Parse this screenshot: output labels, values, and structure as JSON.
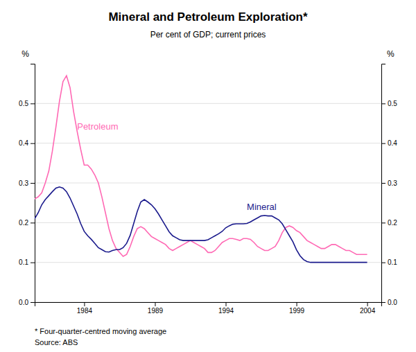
{
  "chart_data": {
    "type": "line",
    "title": "Mineral and Petroleum Exploration*",
    "subtitle": "Per cent of GDP; current prices",
    "ylabel": "%",
    "y2label": "%",
    "footnote": "*  Four-quarter-centred moving average",
    "source": "Source: ABS",
    "grid": true,
    "xlim": [
      1980.5,
      2005.0
    ],
    "xticks": [
      1984,
      1989,
      1994,
      1999,
      2004
    ],
    "ylim": [
      0.0,
      0.6
    ],
    "yticks": [
      {
        "value": 0.0,
        "label": "0.0"
      },
      0.1,
      0.2,
      0.3,
      0.4,
      0.5
    ],
    "y2lim": [
      0.0,
      0.6
    ],
    "y2ticks": [
      {
        "value": 0.0,
        "label": "0.0"
      },
      0.1,
      0.2,
      0.3,
      0.4,
      0.5
    ],
    "x": [
      1980.5,
      1980.75,
      1981.0,
      1981.25,
      1981.5,
      1981.75,
      1982.0,
      1982.25,
      1982.5,
      1982.75,
      1983.0,
      1983.25,
      1983.5,
      1983.75,
      1984.0,
      1984.25,
      1984.5,
      1984.75,
      1985.0,
      1985.25,
      1985.5,
      1985.75,
      1986.0,
      1986.25,
      1986.5,
      1986.75,
      1987.0,
      1987.25,
      1987.5,
      1987.75,
      1988.0,
      1988.25,
      1988.5,
      1988.75,
      1989.0,
      1989.25,
      1989.5,
      1989.75,
      1990.0,
      1990.25,
      1990.5,
      1990.75,
      1991.0,
      1991.25,
      1991.5,
      1991.75,
      1992.0,
      1992.25,
      1992.5,
      1992.75,
      1993.0,
      1993.25,
      1993.5,
      1993.75,
      1994.0,
      1994.25,
      1994.5,
      1994.75,
      1995.0,
      1995.25,
      1995.5,
      1995.75,
      1996.0,
      1996.25,
      1996.5,
      1996.75,
      1997.0,
      1997.25,
      1997.5,
      1997.75,
      1998.0,
      1998.25,
      1998.5,
      1998.75,
      1999.0,
      1999.25,
      1999.5,
      1999.75,
      2000.0,
      2000.25,
      2000.5,
      2000.75,
      2001.0,
      2001.25,
      2001.5,
      2001.75,
      2002.0,
      2002.25,
      2002.5,
      2002.75,
      2003.0,
      2003.25,
      2003.5,
      2003.75,
      2004.0
    ],
    "series": [
      {
        "name": "Petroleum",
        "color": "#FF69B4",
        "label_x": 1983.5,
        "label_y": 0.435,
        "values": [
          0.26,
          0.265,
          0.275,
          0.3,
          0.33,
          0.38,
          0.44,
          0.505,
          0.555,
          0.57,
          0.54,
          0.48,
          0.43,
          0.385,
          0.345,
          0.345,
          0.335,
          0.32,
          0.3,
          0.265,
          0.225,
          0.185,
          0.155,
          0.135,
          0.125,
          0.115,
          0.12,
          0.14,
          0.165,
          0.185,
          0.19,
          0.185,
          0.175,
          0.165,
          0.16,
          0.155,
          0.15,
          0.145,
          0.135,
          0.13,
          0.135,
          0.14,
          0.145,
          0.15,
          0.155,
          0.15,
          0.145,
          0.14,
          0.135,
          0.125,
          0.125,
          0.13,
          0.14,
          0.15,
          0.155,
          0.16,
          0.16,
          0.158,
          0.155,
          0.16,
          0.16,
          0.158,
          0.15,
          0.14,
          0.135,
          0.13,
          0.13,
          0.135,
          0.14,
          0.155,
          0.175,
          0.188,
          0.192,
          0.188,
          0.18,
          0.175,
          0.165,
          0.155,
          0.15,
          0.145,
          0.14,
          0.135,
          0.135,
          0.14,
          0.145,
          0.145,
          0.14,
          0.135,
          0.13,
          0.13,
          0.125,
          0.12,
          0.12,
          0.12,
          0.12
        ]
      },
      {
        "name": "Mineral",
        "color": "#1a1a8c",
        "label_x": 1995.5,
        "label_y": 0.232,
        "values": [
          0.21,
          0.225,
          0.245,
          0.258,
          0.268,
          0.278,
          0.287,
          0.29,
          0.287,
          0.278,
          0.262,
          0.242,
          0.222,
          0.198,
          0.178,
          0.167,
          0.158,
          0.148,
          0.137,
          0.132,
          0.127,
          0.126,
          0.13,
          0.132,
          0.132,
          0.137,
          0.148,
          0.168,
          0.198,
          0.228,
          0.252,
          0.258,
          0.252,
          0.245,
          0.235,
          0.222,
          0.207,
          0.192,
          0.177,
          0.167,
          0.162,
          0.157,
          0.155,
          0.155,
          0.155,
          0.155,
          0.155,
          0.155,
          0.155,
          0.157,
          0.162,
          0.167,
          0.172,
          0.178,
          0.187,
          0.192,
          0.196,
          0.197,
          0.197,
          0.197,
          0.198,
          0.202,
          0.207,
          0.212,
          0.217,
          0.218,
          0.217,
          0.217,
          0.212,
          0.207,
          0.197,
          0.182,
          0.167,
          0.152,
          0.132,
          0.117,
          0.107,
          0.102,
          0.1,
          0.1,
          0.1,
          0.1,
          0.1,
          0.1,
          0.1,
          0.1,
          0.1,
          0.1,
          0.1,
          0.1,
          0.1,
          0.1,
          0.1,
          0.1,
          0.1
        ]
      }
    ]
  }
}
